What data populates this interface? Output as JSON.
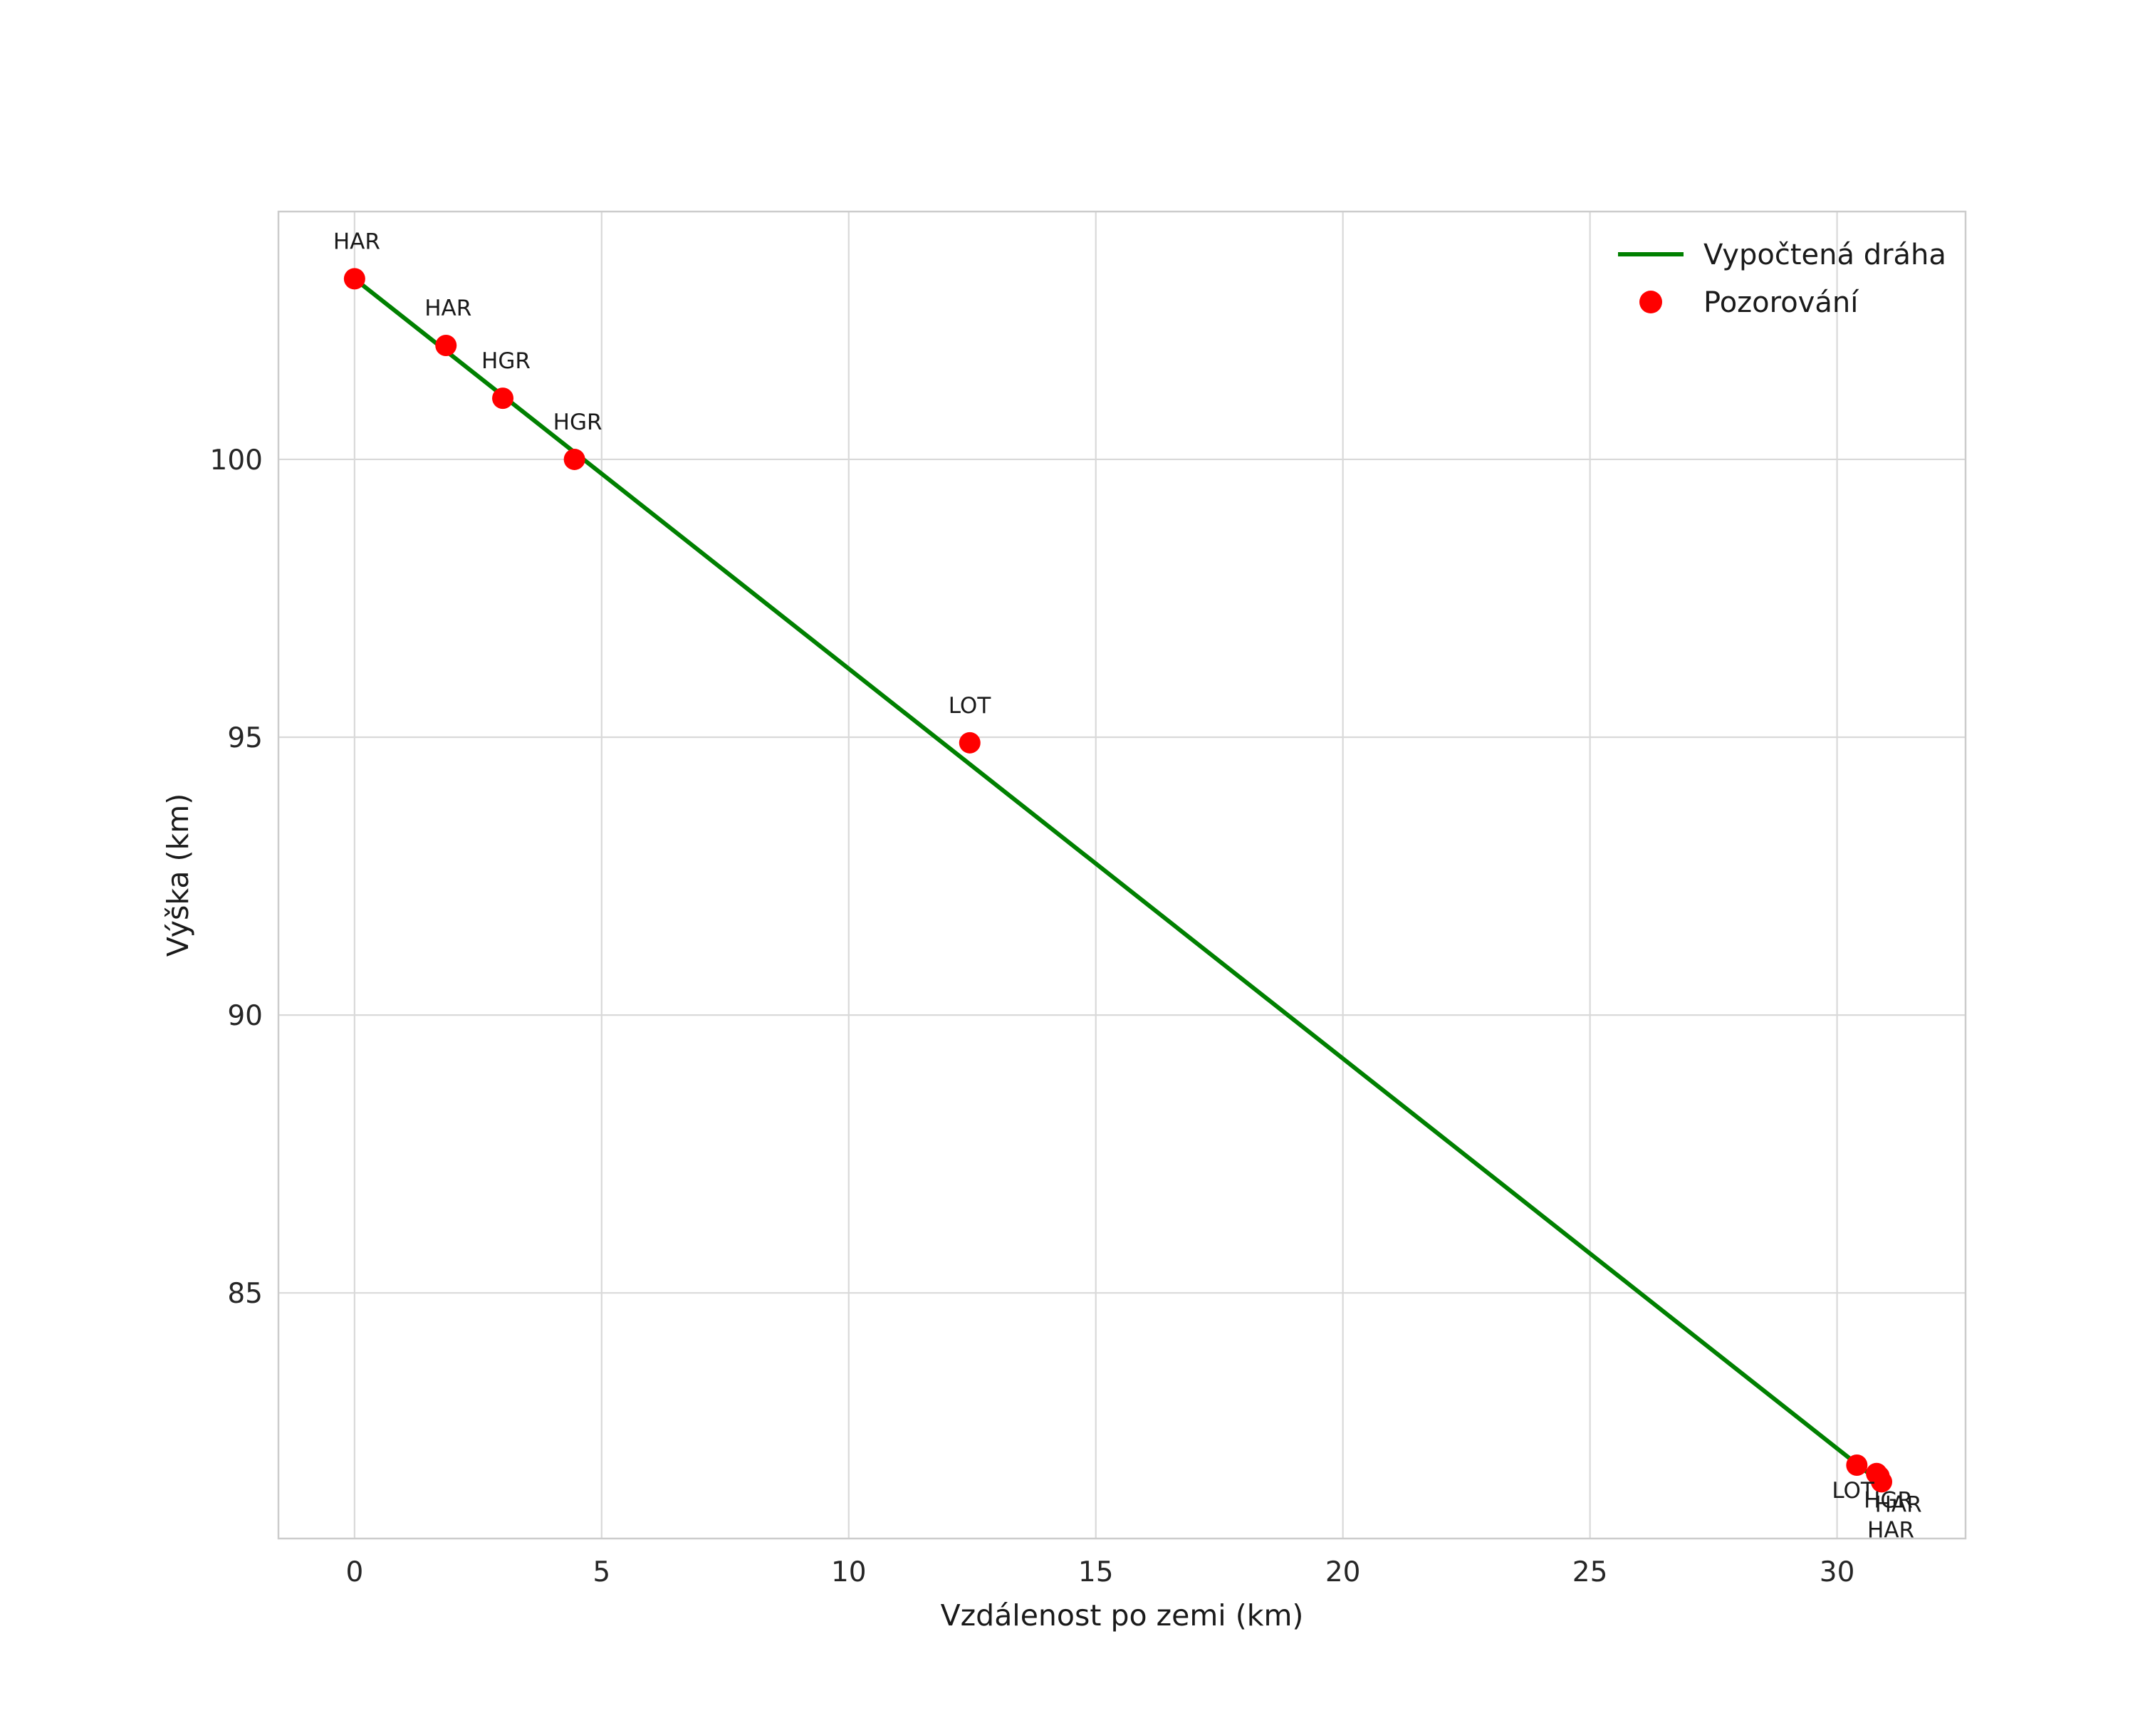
{
  "chart_data": {
    "type": "scatter",
    "title": "",
    "xlabel": "Vzdálenost po zemi (km)",
    "ylabel": "Výška (km)",
    "xlim": [
      -1.54,
      32.6
    ],
    "ylim": [
      80.58,
      104.46
    ],
    "xticks": [
      0,
      5,
      10,
      15,
      20,
      25,
      30
    ],
    "yticks": [
      85,
      90,
      95,
      100
    ],
    "grid": true,
    "legend": {
      "position": "upper right",
      "entries": [
        {
          "label": "Vypočtená dráha",
          "type": "line",
          "color": "#008000"
        },
        {
          "label": "Pozorování",
          "type": "point",
          "color": "#ff0000"
        }
      ]
    },
    "line_series": {
      "name": "Vypočtená dráha",
      "color": "#008000",
      "points": [
        [
          0.0,
          103.25
        ],
        [
          30.6,
          81.78
        ]
      ]
    },
    "scatter_series": {
      "name": "Pozorování",
      "color": "#ff0000",
      "points": [
        {
          "station": "HAR",
          "x": 0.0,
          "y": 103.25
        },
        {
          "station": "HAR",
          "x": 1.85,
          "y": 102.05
        },
        {
          "station": "HGR",
          "x": 3.0,
          "y": 101.1
        },
        {
          "station": "HGR",
          "x": 4.45,
          "y": 100.0
        },
        {
          "station": "LOT",
          "x": 12.45,
          "y": 94.9
        },
        {
          "station": "LOT",
          "x": 30.4,
          "y": 81.9
        },
        {
          "station": "HGR",
          "x": 30.8,
          "y": 81.75
        },
        {
          "station": "HAR",
          "x": 30.85,
          "y": 81.7
        },
        {
          "station": "HAR",
          "x": 30.9,
          "y": 81.6
        }
      ]
    },
    "colors": {
      "grid": "#d9d9d9",
      "border": "#cccccc",
      "text": "#1a1a1a",
      "tick_text": "#262626"
    }
  }
}
